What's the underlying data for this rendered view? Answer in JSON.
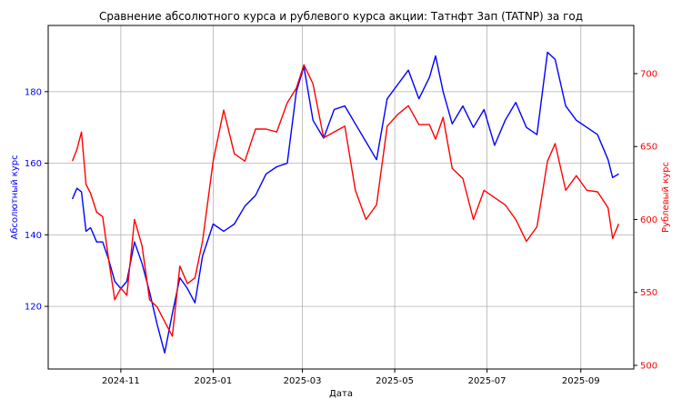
{
  "chart_data": {
    "type": "line",
    "title": "Сравнение абсолютного курса и рублевого курса акции: Татнфт 3ап (TATNP) за год",
    "xlabel": "Дата",
    "ylabel_left": "Абсолютный курс",
    "ylabel_right": "Рублевый курс",
    "x_range": [
      "2024-09-14",
      "2025-10-06"
    ],
    "ylim_left": [
      102.5,
      198.5
    ],
    "ylim_right": [
      497.5,
      733
    ],
    "x_ticks": [
      {
        "date": "2024-11-01",
        "label": "2024-11"
      },
      {
        "date": "2025-01-01",
        "label": "2025-01"
      },
      {
        "date": "2025-03-01",
        "label": "2025-03"
      },
      {
        "date": "2025-05-01",
        "label": "2025-05"
      },
      {
        "date": "2025-07-01",
        "label": "2025-07"
      },
      {
        "date": "2025-09-01",
        "label": "2025-09"
      }
    ],
    "y_ticks_left": [
      120,
      140,
      160,
      180
    ],
    "y_ticks_right": [
      500,
      550,
      600,
      650,
      700
    ],
    "grid": true,
    "colors": {
      "left_series": "#0000ff",
      "right_series": "#ff0000"
    },
    "series": [
      {
        "axis": "left",
        "x": [
          "2024-09-30",
          "2024-10-03",
          "2024-10-06",
          "2024-10-09",
          "2024-10-12",
          "2024-10-16",
          "2024-10-20",
          "2024-10-24",
          "2024-10-28",
          "2024-11-01",
          "2024-11-05",
          "2024-11-10",
          "2024-11-15",
          "2024-11-20",
          "2024-11-25",
          "2024-11-30",
          "2024-12-05",
          "2024-12-10",
          "2024-12-15",
          "2024-12-20",
          "2024-12-25",
          "2025-01-01",
          "2025-01-08",
          "2025-01-15",
          "2025-01-22",
          "2025-01-29",
          "2025-02-05",
          "2025-02-12",
          "2025-02-19",
          "2025-02-25",
          "2025-03-02",
          "2025-03-08",
          "2025-03-15",
          "2025-03-22",
          "2025-03-29",
          "2025-04-05",
          "2025-04-12",
          "2025-04-19",
          "2025-04-26",
          "2025-05-03",
          "2025-05-10",
          "2025-05-17",
          "2025-05-24",
          "2025-05-28",
          "2025-06-02",
          "2025-06-08",
          "2025-06-15",
          "2025-06-22",
          "2025-06-29",
          "2025-07-06",
          "2025-07-13",
          "2025-07-20",
          "2025-07-27",
          "2025-08-03",
          "2025-08-10",
          "2025-08-15",
          "2025-08-22",
          "2025-08-29",
          "2025-09-05",
          "2025-09-12",
          "2025-09-19",
          "2025-09-22",
          "2025-09-26"
        ],
        "y": [
          150,
          153,
          152,
          141,
          142,
          138,
          138,
          133,
          127,
          125,
          127,
          138,
          132,
          124,
          115,
          107,
          118,
          128,
          125,
          121,
          134,
          143,
          141,
          143,
          148,
          151,
          157,
          159,
          160,
          180,
          187,
          172,
          167,
          175,
          176,
          171,
          166,
          161,
          178,
          182,
          186,
          178,
          184,
          190,
          180,
          171,
          176,
          170,
          175,
          165,
          172,
          177,
          170,
          168,
          191,
          189,
          176,
          172,
          170,
          168,
          161,
          156,
          157
        ]
      },
      {
        "axis": "right",
        "x": [
          "2024-09-30",
          "2024-10-03",
          "2024-10-06",
          "2024-10-09",
          "2024-10-12",
          "2024-10-16",
          "2024-10-20",
          "2024-10-24",
          "2024-10-28",
          "2024-11-01",
          "2024-11-05",
          "2024-11-10",
          "2024-11-15",
          "2024-11-20",
          "2024-11-25",
          "2024-11-30",
          "2024-12-05",
          "2024-12-10",
          "2024-12-15",
          "2024-12-20",
          "2024-12-25",
          "2025-01-01",
          "2025-01-08",
          "2025-01-15",
          "2025-01-22",
          "2025-01-29",
          "2025-02-05",
          "2025-02-12",
          "2025-02-19",
          "2025-02-25",
          "2025-03-02",
          "2025-03-08",
          "2025-03-15",
          "2025-03-22",
          "2025-03-29",
          "2025-04-05",
          "2025-04-12",
          "2025-04-19",
          "2025-04-26",
          "2025-05-03",
          "2025-05-10",
          "2025-05-17",
          "2025-05-24",
          "2025-05-28",
          "2025-06-02",
          "2025-06-08",
          "2025-06-15",
          "2025-06-22",
          "2025-06-29",
          "2025-07-06",
          "2025-07-13",
          "2025-07-20",
          "2025-07-27",
          "2025-08-03",
          "2025-08-10",
          "2025-08-15",
          "2025-08-22",
          "2025-08-29",
          "2025-09-05",
          "2025-09-12",
          "2025-09-19",
          "2025-09-22",
          "2025-09-26"
        ],
        "y": [
          640,
          648,
          660,
          624,
          618,
          605,
          602,
          572,
          545,
          553,
          548,
          600,
          582,
          545,
          540,
          530,
          520,
          568,
          556,
          560,
          585,
          640,
          675,
          645,
          640,
          662,
          662,
          660,
          680,
          690,
          706,
          693,
          656,
          660,
          664,
          620,
          600,
          610,
          664,
          672,
          678,
          665,
          665,
          655,
          670,
          635,
          628,
          600,
          620,
          615,
          610,
          600,
          585,
          595,
          640,
          652,
          620,
          630,
          620,
          619,
          608,
          587,
          597
        ]
      }
    ]
  }
}
